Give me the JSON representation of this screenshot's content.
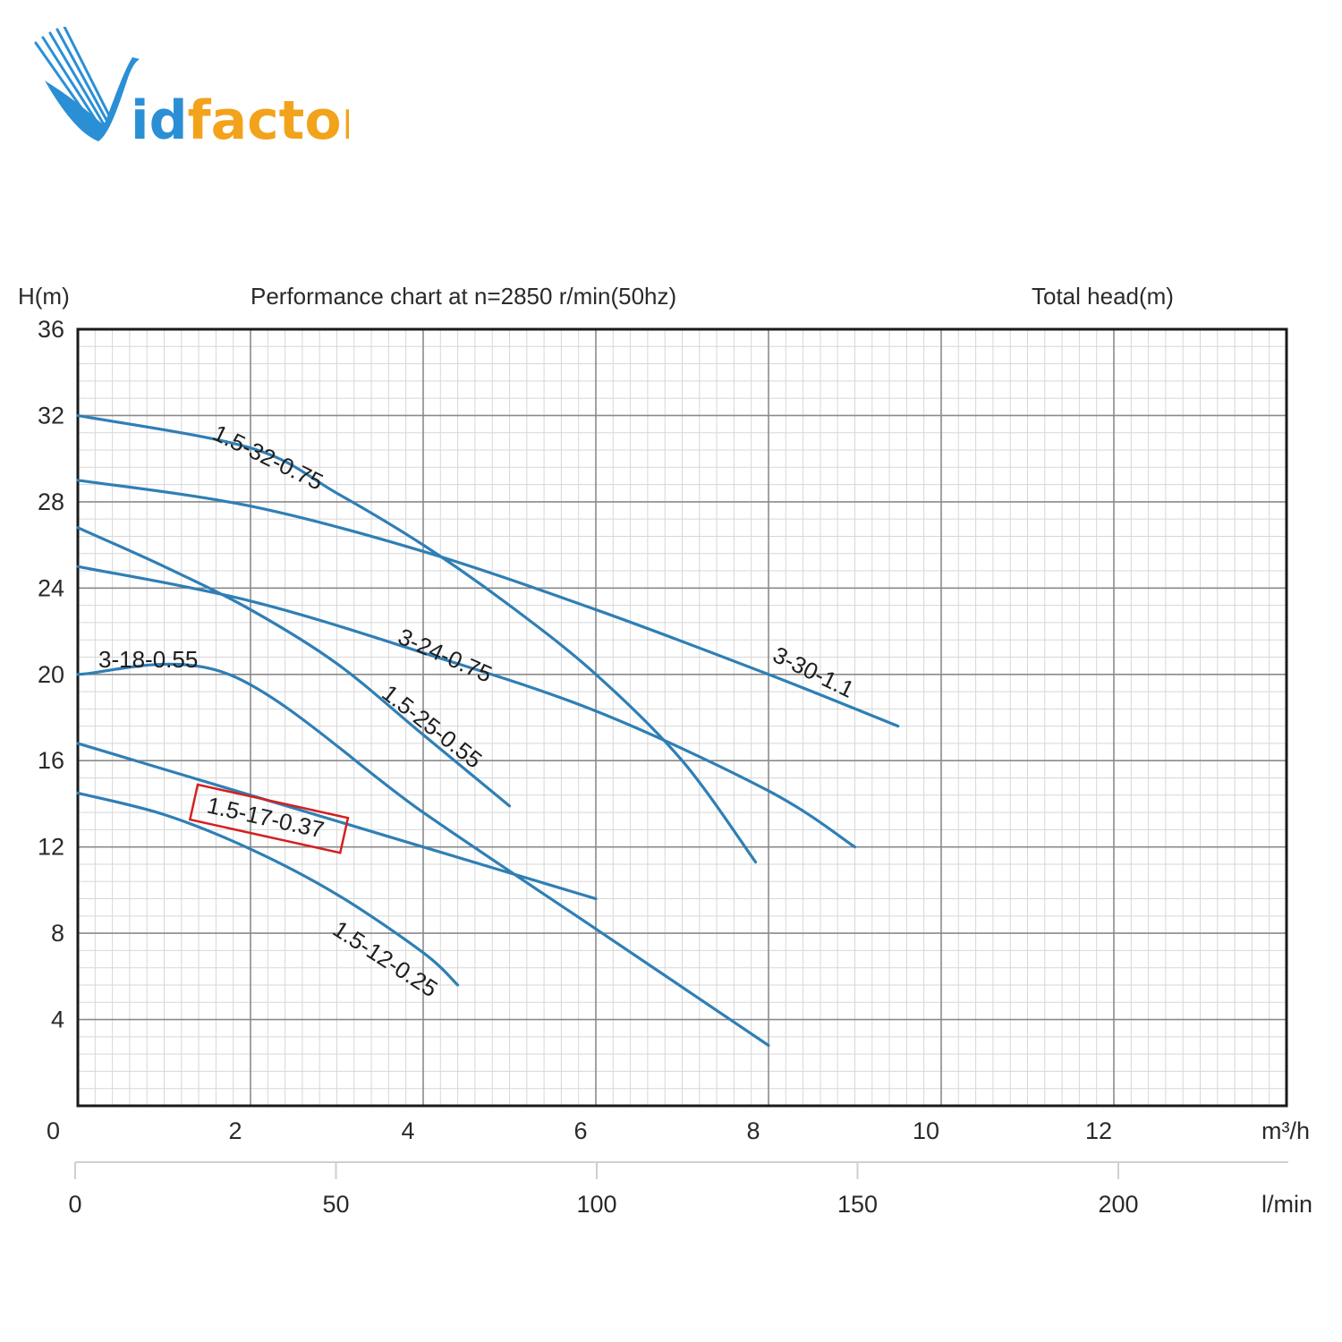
{
  "logo": {
    "text_prefix": "V",
    "text_id": "id",
    "text_factor": "factor"
  },
  "chart_data": {
    "type": "line",
    "title": "Performance chart at n=2850 r/min(50hz)",
    "ylabel": "H(m)",
    "right_label": "Total head(m)",
    "x_unit": "m³/h",
    "x2_unit": "l/min",
    "xlim": [
      0,
      14
    ],
    "ylim": [
      0,
      36
    ],
    "x_ticks": [
      0,
      2,
      4,
      6,
      8,
      10,
      12
    ],
    "y_ticks": [
      4,
      8,
      12,
      16,
      20,
      24,
      28,
      32,
      36
    ],
    "x2_ticks": [
      0,
      50,
      100,
      150,
      200
    ],
    "grid": true,
    "line_color": "#2f7fb5",
    "highlight_color": "#d42020",
    "series": [
      {
        "name": "1.5-32-0.75",
        "x": [
          0,
          2,
          3,
          4,
          5,
          6,
          7,
          7.85
        ],
        "y": [
          32,
          30.5,
          28.4,
          26,
          23.2,
          20,
          16,
          11.3
        ]
      },
      {
        "name": "3-30-1.1",
        "x": [
          0,
          2,
          4,
          6,
          8,
          9.5
        ],
        "y": [
          29,
          27.8,
          25.7,
          23,
          20,
          17.6
        ]
      },
      {
        "name": "1.5-25-0.55",
        "x": [
          0,
          1,
          2,
          3,
          4,
          5
        ],
        "y": [
          26.8,
          25,
          23,
          20.5,
          17.2,
          13.9
        ]
      },
      {
        "name": "3-24-0.75",
        "x": [
          0,
          2,
          4,
          6,
          8,
          9
        ],
        "y": [
          25,
          23.4,
          21,
          18.3,
          14.6,
          12
        ]
      },
      {
        "name": "3-18-0.55",
        "x": [
          0,
          1.75,
          4,
          6,
          8
        ],
        "y": [
          20,
          20,
          13.6,
          8.2,
          2.8
        ]
      },
      {
        "name": "1.5-17-0.37",
        "x": [
          0,
          1,
          2,
          3,
          4,
          5,
          6
        ],
        "y": [
          16.8,
          15.6,
          14.4,
          13.2,
          12,
          10.8,
          9.6
        ],
        "highlight": true
      },
      {
        "name": "1.5-12-0.25",
        "x": [
          0,
          1,
          2,
          3,
          4,
          4.4
        ],
        "y": [
          14.5,
          13.5,
          11.9,
          9.8,
          7.1,
          5.6
        ]
      }
    ]
  }
}
